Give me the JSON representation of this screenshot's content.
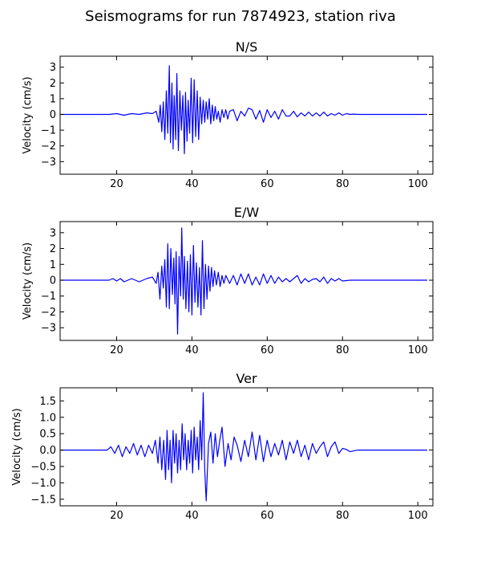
{
  "figure_title": "Seismograms for run 7874923, station riva",
  "colors": {
    "trace": "#0000ff",
    "axes": "#000000",
    "background": "#ffffff"
  },
  "chart_data": [
    {
      "type": "line",
      "title": "N/S",
      "ylabel": "Velocity (cm/s)",
      "xlabel": "",
      "xlim": [
        5,
        104
      ],
      "ylim": [
        -3.8,
        3.7
      ],
      "xticks": [
        20,
        40,
        60,
        80,
        100
      ],
      "xtick_labels": [
        "20",
        "40",
        "60",
        "80",
        "100"
      ],
      "yticks": [
        -3,
        -2,
        -1,
        0,
        1,
        2,
        3
      ],
      "ytick_labels": [
        "−3",
        "−2",
        "−1",
        "0",
        "1",
        "2",
        "3"
      ],
      "grid": false,
      "series": [
        {
          "x": [
            5,
            18,
            20,
            22,
            24,
            26,
            28,
            29.5,
            30.5,
            31.2,
            31.6,
            32.0,
            32.4,
            32.8,
            33.2,
            33.6,
            34.0,
            34.3,
            34.7,
            35.0,
            35.3,
            35.7,
            36.0,
            36.4,
            36.8,
            37.2,
            37.6,
            38.0,
            38.3,
            38.7,
            39.0,
            39.4,
            39.8,
            40.2,
            40.6,
            41.0,
            41.4,
            41.8,
            42.2,
            42.6,
            43.0,
            43.4,
            43.8,
            44.2,
            44.6,
            45.0,
            45.4,
            45.8,
            46.2,
            46.6,
            47.0,
            47.5,
            48.0,
            48.5,
            49.0,
            49.5,
            50.0,
            51,
            52,
            53,
            54,
            55,
            56,
            57,
            58,
            59,
            60,
            61,
            62,
            63,
            64,
            65,
            66,
            67,
            68,
            69,
            70,
            71,
            72,
            73,
            74,
            75,
            76,
            77,
            78,
            79,
            80,
            81,
            82,
            83,
            84,
            86,
            90,
            95,
            102.5
          ],
          "y": [
            0,
            0,
            0.05,
            -0.05,
            0.05,
            0,
            0.1,
            0.05,
            0.2,
            -0.5,
            0.6,
            -1.1,
            0.8,
            -1.6,
            1.5,
            -1.2,
            3.1,
            -1.8,
            2.0,
            -2.2,
            1.2,
            -1.6,
            2.6,
            -2.3,
            1.5,
            -1.0,
            1.2,
            -2.5,
            1.4,
            -1.7,
            0.9,
            -1.2,
            2.3,
            -1.8,
            2.2,
            -1.4,
            1.5,
            -1.6,
            1.1,
            -0.6,
            0.9,
            -0.5,
            0.8,
            -0.3,
            1.0,
            -0.6,
            0.6,
            -0.4,
            0.5,
            -0.3,
            0.2,
            -0.5,
            0.3,
            -0.2,
            0.3,
            -0.3,
            0.2,
            0.3,
            -0.4,
            0.2,
            -0.1,
            0.4,
            0.3,
            -0.3,
            0.25,
            -0.5,
            0.3,
            -0.2,
            0.2,
            -0.3,
            0.3,
            -0.1,
            -0.1,
            0.2,
            -0.15,
            0.1,
            -0.1,
            0.15,
            -0.1,
            0.1,
            -0.1,
            0.15,
            -0.1,
            0.05,
            -0.05,
            0.1,
            -0.05,
            0.05,
            0,
            0.02,
            0,
            0,
            0,
            0,
            0
          ]
        }
      ]
    },
    {
      "type": "line",
      "title": "E/W",
      "ylabel": "Velocity (cm/s)",
      "xlabel": "",
      "xlim": [
        5,
        104
      ],
      "ylim": [
        -3.8,
        3.7
      ],
      "xticks": [
        20,
        40,
        60,
        80,
        100
      ],
      "xtick_labels": [
        "20",
        "40",
        "60",
        "80",
        "100"
      ],
      "yticks": [
        -3,
        -2,
        -1,
        0,
        1,
        2,
        3
      ],
      "ytick_labels": [
        "−3",
        "−2",
        "−1",
        "0",
        "1",
        "2",
        "3"
      ],
      "grid": false,
      "series": [
        {
          "x": [
            5,
            18,
            19,
            20,
            21,
            22,
            24,
            26,
            28,
            29.5,
            30.5,
            31.0,
            31.5,
            32.0,
            32.4,
            32.8,
            33.2,
            33.6,
            34.0,
            34.4,
            34.8,
            35.2,
            35.5,
            35.8,
            36.2,
            36.6,
            37.0,
            37.3,
            37.7,
            38.0,
            38.4,
            38.8,
            39.2,
            39.6,
            40.0,
            40.4,
            40.8,
            41.2,
            41.6,
            42.0,
            42.4,
            42.8,
            43.2,
            43.6,
            44.0,
            44.4,
            44.8,
            45.2,
            45.6,
            46.0,
            46.5,
            47.0,
            47.5,
            48.0,
            48.5,
            49.0,
            50,
            51,
            52,
            53,
            54,
            55,
            56,
            57,
            58,
            59,
            60,
            61,
            62,
            63,
            64,
            65,
            66,
            67,
            68,
            69,
            70,
            71,
            72,
            73,
            74,
            75,
            76,
            77,
            78,
            79,
            80,
            82,
            85,
            90,
            95,
            102.5
          ],
          "y": [
            0,
            0,
            0.1,
            -0.05,
            0.1,
            -0.1,
            0.1,
            -0.1,
            0.1,
            0.2,
            -0.2,
            0.5,
            -1.2,
            0.9,
            -0.5,
            1.3,
            -1.7,
            2.3,
            -1.8,
            2.0,
            -0.9,
            1.4,
            -1.5,
            1.8,
            -3.4,
            1.5,
            -1.0,
            3.3,
            -1.2,
            1.5,
            -1.8,
            1.2,
            -2.0,
            1.6,
            -2.2,
            2.2,
            -1.4,
            1.1,
            -1.7,
            0.8,
            -2.2,
            2.5,
            -1.8,
            1.0,
            -1.2,
            0.9,
            -0.7,
            0.8,
            -0.4,
            0.6,
            -0.3,
            0.5,
            -0.4,
            0.3,
            -0.2,
            0.3,
            -0.2,
            0.3,
            -0.3,
            0.4,
            -0.2,
            0.4,
            -0.3,
            0.2,
            -0.3,
            0.4,
            -0.2,
            0.3,
            -0.2,
            0.2,
            -0.1,
            0.1,
            -0.1,
            0.1,
            0.3,
            -0.2,
            0.1,
            -0.1,
            0.05,
            0.1,
            -0.1,
            0.2,
            -0.2,
            0.1,
            -0.05,
            0.1,
            -0.05,
            0,
            0,
            0,
            0,
            0
          ]
        }
      ]
    },
    {
      "type": "line",
      "title": "Ver",
      "ylabel": "Velocity (cm/s)",
      "xlabel": "",
      "xlim": [
        5,
        104
      ],
      "ylim": [
        -1.7,
        1.9
      ],
      "xticks": [
        20,
        40,
        60,
        80,
        100
      ],
      "xtick_labels": [
        "20",
        "40",
        "60",
        "80",
        "100"
      ],
      "yticks": [
        -1.5,
        -1.0,
        -0.5,
        0.0,
        0.5,
        1.0,
        1.5
      ],
      "ytick_labels": [
        "−1.5",
        "−1.0",
        "−0.5",
        "0.0",
        "0.5",
        "1.0",
        "1.5"
      ],
      "grid": false,
      "series": [
        {
          "x": [
            5,
            17.5,
            18.5,
            19.5,
            20.5,
            21.5,
            22.5,
            23.5,
            24.5,
            25.5,
            26.5,
            27.5,
            28.5,
            29.5,
            30.3,
            31.0,
            31.5,
            32.0,
            32.5,
            33.0,
            33.4,
            33.8,
            34.2,
            34.6,
            35.0,
            35.4,
            35.8,
            36.2,
            36.6,
            37.0,
            37.4,
            37.8,
            38.2,
            38.6,
            39.0,
            39.4,
            39.8,
            40.2,
            40.6,
            41.0,
            41.4,
            41.8,
            42.2,
            42.6,
            43.0,
            43.4,
            43.8,
            44.4,
            45.0,
            45.6,
            46.2,
            46.8,
            47.4,
            48.0,
            48.8,
            49.6,
            50.4,
            51.2,
            52,
            53,
            54,
            55,
            56,
            57,
            58,
            59,
            60,
            61,
            62,
            63,
            64,
            65,
            66,
            67,
            68,
            69,
            70,
            71,
            72,
            73,
            74,
            75,
            76,
            77,
            78,
            79,
            80,
            81,
            82,
            84,
            88,
            95,
            102.5
          ],
          "y": [
            0,
            0,
            0.1,
            -0.1,
            0.15,
            -0.2,
            0.1,
            -0.1,
            0.2,
            -0.15,
            0.15,
            -0.2,
            0.15,
            -0.1,
            0.3,
            -0.4,
            0.4,
            -0.6,
            0.3,
            -0.9,
            0.6,
            -0.6,
            0.3,
            -1.0,
            0.6,
            -0.4,
            0.5,
            -0.7,
            0.3,
            -0.6,
            0.8,
            -0.3,
            0.5,
            -0.6,
            0.3,
            -0.4,
            0.6,
            -0.7,
            0.7,
            -0.3,
            0.4,
            -0.6,
            0.9,
            -0.3,
            1.75,
            -0.6,
            -1.55,
            0.2,
            0.55,
            -0.4,
            0.5,
            -0.2,
            0.3,
            0.7,
            -0.5,
            0.2,
            -0.3,
            0.4,
            0.15,
            -0.35,
            0.3,
            -0.2,
            0.55,
            -0.3,
            0.45,
            -0.35,
            0.3,
            -0.2,
            0.2,
            -0.15,
            0.3,
            -0.3,
            0.25,
            -0.1,
            0.3,
            -0.2,
            0.15,
            -0.3,
            0.2,
            -0.1,
            0.1,
            0.25,
            -0.2,
            0.1,
            0.25,
            -0.1,
            0.05,
            0.02,
            -0.05,
            0,
            0,
            0,
            0
          ]
        }
      ]
    }
  ]
}
